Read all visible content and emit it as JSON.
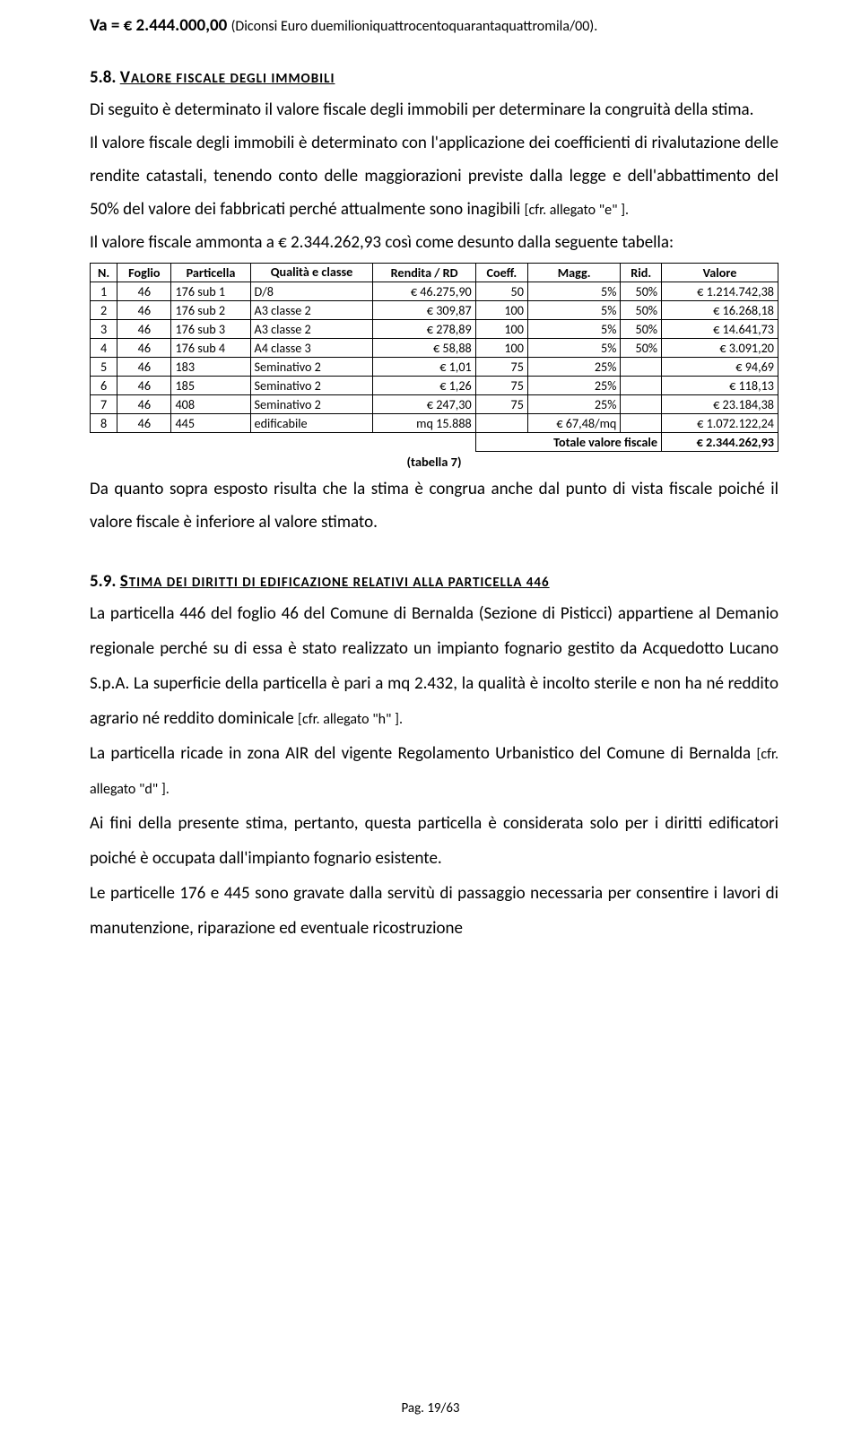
{
  "p1_pre": "Va = € 2.444.000,00 ",
  "p1_note": "(Diconsi Euro duemilioniquattrocentoquarantaquattromila/00).",
  "sec58_num": "5.8. ",
  "sec58_title_u": "V",
  "sec58_title_rest": "ALORE FISCALE DEGLI IMMOBILI",
  "p2": "Di seguito è determinato il valore fiscale degli immobili per determinare la congruità della stima.",
  "p3": "Il valore fiscale degli immobili è determinato con l'applicazione dei coefficienti di rivalutazione delle rendite catastali, tenendo conto delle maggiorazioni previste dalla legge e dell'abbattimento del 50% del valore dei fabbricati perché attualmente sono inagibili ",
  "p3_note": "[cfr. allegato \"e\" ].",
  "p4": "Il valore fiscale ammonta a € 2.344.262,93 così come desunto dalla seguente tabella:",
  "table": {
    "headers": [
      "N.",
      "Foglio",
      "Particella",
      "Qualità e classe",
      "Rendita / RD",
      "Coeff.",
      "Magg.",
      "Rid.",
      "Valore"
    ],
    "rows": [
      [
        "1",
        "46",
        "176 sub 1",
        "D/8",
        "€ 46.275,90",
        "50",
        "5%",
        "50%",
        "€ 1.214.742,38"
      ],
      [
        "2",
        "46",
        "176 sub 2",
        "A3 classe 2",
        "€ 309,87",
        "100",
        "5%",
        "50%",
        "€ 16.268,18"
      ],
      [
        "3",
        "46",
        "176 sub 3",
        "A3 classe 2",
        "€ 278,89",
        "100",
        "5%",
        "50%",
        "€ 14.641,73"
      ],
      [
        "4",
        "46",
        "176 sub 4",
        "A4 classe 3",
        "€ 58,88",
        "100",
        "5%",
        "50%",
        "€ 3.091,20"
      ],
      [
        "5",
        "46",
        "183",
        "Seminativo 2",
        "€ 1,01",
        "75",
        "25%",
        "",
        "€ 94,69"
      ],
      [
        "6",
        "46",
        "185",
        "Seminativo 2",
        "€ 1,26",
        "75",
        "25%",
        "",
        "€ 118,13"
      ],
      [
        "7",
        "46",
        "408",
        "Seminativo 2",
        "€ 247,30",
        "75",
        "25%",
        "",
        "€ 23.184,38"
      ],
      [
        "8",
        "46",
        "445",
        "edificabile",
        "mq 15.888",
        "",
        "€ 67,48/mq",
        "",
        "€ 1.072.122,24"
      ]
    ],
    "total_label": "Totale valore fiscale",
    "total_value": "€ 2.344.262,93",
    "caption": "(tabella 7)"
  },
  "p5": "Da quanto sopra esposto risulta che la stima è congrua anche dal punto di vista fiscale poiché il valore fiscale è inferiore al valore stimato.",
  "sec59_num": "5.9. ",
  "sec59_title_u": "S",
  "sec59_title_rest": "TIMA DEI DIRITTI DI EDIFICAZIONE RELATIVI ALLA PARTICELLA 446",
  "p6": "La particella 446 del foglio 46 del Comune di Bernalda (Sezione di Pisticci) appartiene al Demanio regionale perché su di essa è stato realizzato un impianto fognario gestito da Acquedotto Lucano S.p.A. La superficie della particella è pari a mq 2.432, la qualità è incolto sterile e non ha né reddito agrario né reddito dominicale ",
  "p6_note": "[cfr. allegato \"h\" ].",
  "p7": "La particella ricade in zona AIR del vigente Regolamento Urbanistico del Comune di Bernalda ",
  "p7_note": "[cfr. allegato \"d\" ].",
  "p8": "Ai fini della presente stima, pertanto, questa particella è considerata solo per i diritti edificatori poiché è occupata dall'impianto fognario esistente.",
  "p9": "Le particelle 176 e 445 sono gravate dalla servitù di passaggio necessaria per consentire i lavori di manutenzione, riparazione ed eventuale ricostruzione",
  "footer": "Pag. 19/63"
}
